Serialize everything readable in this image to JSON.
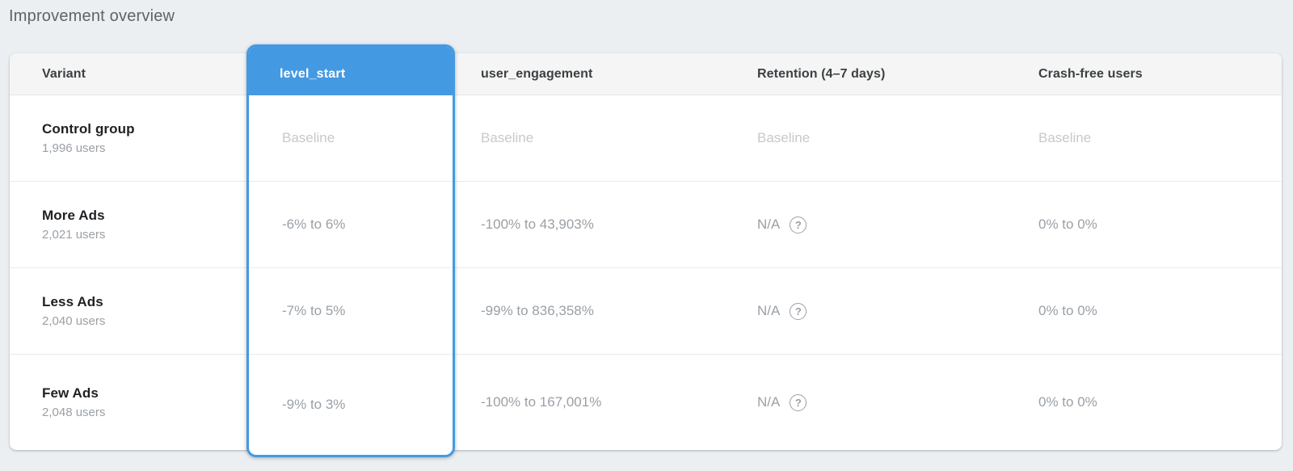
{
  "page": {
    "title": "Improvement overview"
  },
  "colors": {
    "accent_blue": "#4499e3",
    "page_bg": "#eceff1",
    "header_bg": "#f5f5f5"
  },
  "icons": {
    "help_glyph": "?"
  },
  "table": {
    "columns": {
      "variant": "Variant",
      "level_start": "level_start",
      "user_engagement": "user_engagement",
      "retention": "Retention (4–7 days)",
      "crash_free": "Crash-free users"
    },
    "selected_metric": "level_start",
    "rows": [
      {
        "variant": "Control group",
        "users": "1,996 users",
        "level_start": "Baseline",
        "user_engagement": "Baseline",
        "retention": "Baseline",
        "crash_free": "Baseline"
      },
      {
        "variant": "More Ads",
        "users": "2,021 users",
        "level_start": "-6% to 6%",
        "user_engagement": "-100% to 43,903%",
        "retention": "N/A",
        "crash_free": "0% to 0%"
      },
      {
        "variant": "Less Ads",
        "users": "2,040 users",
        "level_start": "-7% to 5%",
        "user_engagement": "-99% to 836,358%",
        "retention": "N/A",
        "crash_free": "0% to 0%"
      },
      {
        "variant": "Few Ads",
        "users": "2,048 users",
        "level_start": "-9% to 3%",
        "user_engagement": "-100% to 167,001%",
        "retention": "N/A",
        "crash_free": "0% to 0%"
      }
    ]
  }
}
